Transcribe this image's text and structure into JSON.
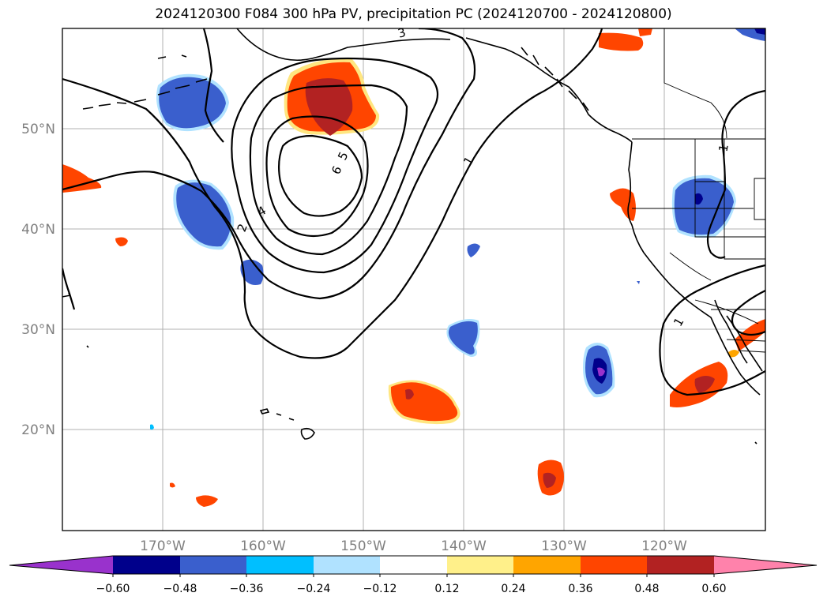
{
  "title": "2024120300 F084 300 hPa PV, precipitation PC (2024120700 - 2024120800)",
  "map": {
    "lon_labels": [
      "170°W",
      "160°W",
      "150°W",
      "140°W",
      "130°W",
      "120°W"
    ],
    "lat_labels": [
      "50°N",
      "40°N",
      "30°N",
      "20°N"
    ],
    "contour_labels": [
      "1",
      "1",
      "1",
      "1",
      "2",
      "3",
      "4",
      "5",
      "6"
    ]
  },
  "colorbar": {
    "colors": [
      "#9932cc",
      "#00008b",
      "#3a5fcd",
      "#00bfff",
      "#b0e2ff",
      "#ffffff",
      "#fff08a",
      "#ffa500",
      "#ff4500",
      "#b22222",
      "#ff82ab"
    ],
    "tick_labels": [
      "−0.60",
      "−0.48",
      "−0.36",
      "−0.24",
      "−0.12",
      "0.12",
      "0.24",
      "0.36",
      "0.48",
      "0.60"
    ]
  }
}
